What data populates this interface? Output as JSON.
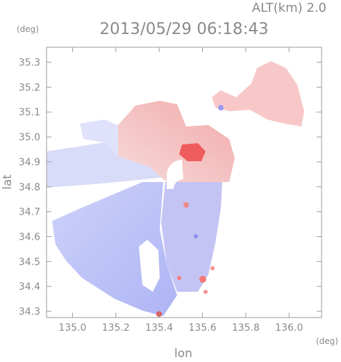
{
  "header": {
    "altitude_label": "ALT(km) 2.0",
    "timestamp": "2013/05/29 06:18:43"
  },
  "axes": {
    "x_label": "lon",
    "y_label": "lat",
    "x_unit": "(deg)",
    "y_unit": "(deg)",
    "x_range": [
      134.88,
      136.15
    ],
    "y_range": [
      34.275,
      35.36
    ],
    "x_ticks": [
      {
        "value": 135.0,
        "label": "135.0"
      },
      {
        "value": 135.2,
        "label": "135.2"
      },
      {
        "value": 135.4,
        "label": "135.4"
      },
      {
        "value": 135.6,
        "label": "135.6"
      },
      {
        "value": 135.8,
        "label": "135.8"
      },
      {
        "value": 136.0,
        "label": "136.0"
      }
    ],
    "y_ticks": [
      {
        "value": 34.3,
        "label": "34.3"
      },
      {
        "value": 34.4,
        "label": "34.4"
      },
      {
        "value": 34.5,
        "label": "34.5"
      },
      {
        "value": 34.6,
        "label": "34.6"
      },
      {
        "value": 34.7,
        "label": "34.7"
      },
      {
        "value": 34.8,
        "label": "34.8"
      },
      {
        "value": 34.9,
        "label": "34.9"
      },
      {
        "value": 35.0,
        "label": "35.0"
      },
      {
        "value": 35.1,
        "label": "35.1"
      },
      {
        "value": 35.2,
        "label": "35.2"
      },
      {
        "value": 35.3,
        "label": "35.3"
      }
    ]
  },
  "radar": {
    "center": {
      "lon": 135.525,
      "lat": 34.82
    },
    "colors": {
      "approaching": "#6b6bff",
      "receding": "#ff5a5a",
      "neutral": "#ffffff",
      "frame": "#9a9a9a"
    }
  }
}
